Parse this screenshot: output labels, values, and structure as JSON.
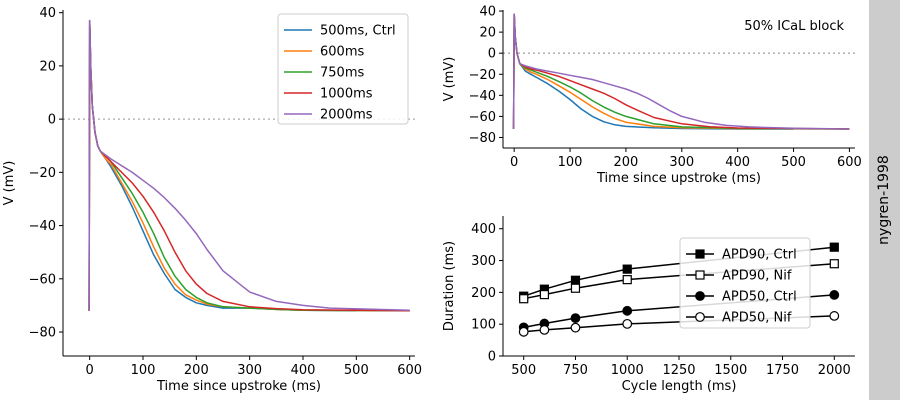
{
  "side_label": "nygren-1998",
  "colors": {
    "500ms, Ctrl": "#1f77b4",
    "600ms": "#ff7f0e",
    "750ms": "#2ca02c",
    "1000ms": "#d62728",
    "2000ms": "#9467bd",
    "marker": "#000000",
    "zero_line": "#aaaaaa",
    "side_band": "#cccccc"
  },
  "chart_data": [
    {
      "type": "line",
      "xlabel": "Time since upstroke (ms)",
      "ylabel": "V (mV)",
      "xlim": [
        -50,
        610
      ],
      "ylim": [
        -89,
        41
      ],
      "xticks": [
        0,
        100,
        200,
        300,
        400,
        500,
        600
      ],
      "yticks": [
        -80,
        -60,
        -40,
        -20,
        0,
        20,
        40
      ],
      "zero_line": true,
      "legend": "top-right",
      "series": [
        {
          "name": "500ms, Ctrl",
          "x": [
            -1,
            0,
            2,
            5,
            10,
            15,
            20,
            30,
            40,
            60,
            80,
            100,
            120,
            140,
            160,
            180,
            200,
            220,
            250,
            300,
            350,
            400,
            500
          ],
          "y": [
            -72,
            37,
            20,
            5,
            -5,
            -10,
            -12,
            -15,
            -18,
            -25,
            -33,
            -42,
            -51,
            -58,
            -64,
            -67,
            -69,
            -70,
            -71,
            -71,
            -71.5,
            -71.8,
            -72
          ]
        },
        {
          "name": "600ms",
          "x": [
            -1,
            0,
            2,
            5,
            10,
            15,
            20,
            30,
            40,
            60,
            80,
            100,
            120,
            140,
            160,
            180,
            200,
            220,
            250,
            300,
            350,
            400,
            600
          ],
          "y": [
            -72,
            37,
            20,
            5,
            -5,
            -10,
            -12,
            -15,
            -17,
            -24,
            -31,
            -39,
            -48,
            -56,
            -62,
            -66,
            -68,
            -69.5,
            -70.5,
            -71,
            -71.5,
            -71.8,
            -72
          ]
        },
        {
          "name": "750ms",
          "x": [
            -1,
            0,
            2,
            5,
            10,
            15,
            20,
            30,
            40,
            60,
            80,
            100,
            120,
            140,
            160,
            180,
            200,
            220,
            250,
            300,
            350,
            400,
            600
          ],
          "y": [
            -72,
            37,
            20,
            5,
            -5,
            -10,
            -12,
            -14,
            -16,
            -22,
            -28,
            -35,
            -43,
            -52,
            -59,
            -64,
            -67,
            -69,
            -70.5,
            -71,
            -71.5,
            -71.8,
            -72
          ]
        },
        {
          "name": "1000ms",
          "x": [
            -1,
            0,
            2,
            5,
            10,
            15,
            20,
            30,
            40,
            60,
            80,
            100,
            120,
            140,
            160,
            180,
            200,
            220,
            250,
            300,
            350,
            400,
            600
          ],
          "y": [
            -72,
            37,
            20,
            5,
            -5,
            -10,
            -12,
            -14,
            -16,
            -20,
            -24,
            -29,
            -35,
            -42,
            -50,
            -57,
            -62,
            -65.5,
            -68.5,
            -70.5,
            -71.2,
            -71.6,
            -72
          ]
        },
        {
          "name": "2000ms",
          "x": [
            -1,
            0,
            2,
            5,
            10,
            15,
            20,
            30,
            40,
            60,
            80,
            100,
            120,
            140,
            160,
            180,
            200,
            220,
            250,
            300,
            350,
            400,
            450,
            600
          ],
          "y": [
            -72,
            37,
            20,
            5,
            -5,
            -10,
            -12,
            -13.5,
            -15,
            -17.5,
            -20,
            -23,
            -26,
            -29.5,
            -33.5,
            -38,
            -43,
            -49,
            -57,
            -65,
            -68.5,
            -70,
            -71,
            -71.8
          ]
        }
      ]
    },
    {
      "type": "line",
      "xlabel": "Time since upstroke (ms)",
      "ylabel": "V (mV)",
      "annotation": "50% ICaL block",
      "xlim": [
        -20,
        610
      ],
      "ylim": [
        -90,
        41
      ],
      "xticks": [
        0,
        100,
        200,
        300,
        400,
        500,
        600
      ],
      "yticks": [
        -80,
        -60,
        -40,
        -20,
        0,
        20,
        40
      ],
      "zero_line": true,
      "series": [
        {
          "name": "500ms, Ctrl",
          "x": [
            -1,
            0,
            2,
            5,
            10,
            20,
            30,
            40,
            60,
            80,
            100,
            120,
            140,
            160,
            180,
            200,
            250,
            300,
            400,
            500
          ],
          "y": [
            -72,
            37,
            15,
            0,
            -10,
            -17,
            -20,
            -23,
            -29,
            -36,
            -44,
            -53,
            -60,
            -65,
            -68,
            -69.5,
            -70.8,
            -71.5,
            -72,
            -72
          ]
        },
        {
          "name": "600ms",
          "x": [
            -1,
            0,
            2,
            5,
            10,
            20,
            30,
            40,
            60,
            80,
            100,
            120,
            140,
            160,
            180,
            200,
            250,
            300,
            400,
            600
          ],
          "y": [
            -72,
            37,
            15,
            0,
            -10,
            -15,
            -18,
            -20,
            -25,
            -31,
            -37,
            -44,
            -51,
            -57,
            -62,
            -65.5,
            -69.5,
            -70.8,
            -71.6,
            -72
          ]
        },
        {
          "name": "750ms",
          "x": [
            -1,
            0,
            2,
            5,
            10,
            20,
            30,
            40,
            60,
            80,
            100,
            120,
            140,
            160,
            180,
            200,
            250,
            300,
            400,
            600
          ],
          "y": [
            -72,
            37,
            15,
            0,
            -10,
            -14,
            -16,
            -18,
            -22,
            -27,
            -32,
            -38,
            -45,
            -51,
            -56,
            -60,
            -67,
            -70,
            -71.5,
            -72
          ]
        },
        {
          "name": "1000ms",
          "x": [
            -1,
            0,
            2,
            5,
            10,
            20,
            30,
            40,
            60,
            80,
            100,
            120,
            140,
            160,
            180,
            200,
            220,
            250,
            300,
            350,
            400,
            600
          ],
          "y": [
            -72,
            37,
            15,
            0,
            -10,
            -13,
            -15,
            -16,
            -19,
            -22,
            -26,
            -30,
            -34,
            -38,
            -43,
            -49,
            -54,
            -61,
            -67,
            -69.8,
            -71,
            -72
          ]
        },
        {
          "name": "2000ms",
          "x": [
            -1,
            0,
            2,
            5,
            10,
            20,
            30,
            40,
            60,
            80,
            100,
            120,
            140,
            160,
            180,
            200,
            220,
            240,
            260,
            280,
            300,
            340,
            380,
            420,
            500,
            600
          ],
          "y": [
            -72,
            37,
            15,
            0,
            -10,
            -12,
            -13.5,
            -15,
            -17,
            -19,
            -21,
            -23,
            -25,
            -28,
            -31,
            -34,
            -38,
            -43,
            -49,
            -55,
            -60,
            -65.5,
            -68.5,
            -70,
            -71.3,
            -72
          ]
        }
      ]
    },
    {
      "type": "line",
      "xlabel": "Cycle length (ms)",
      "ylabel": "Duration (ms)",
      "xlim": [
        400,
        2100
      ],
      "ylim": [
        0,
        440
      ],
      "xticks": [
        500,
        750,
        1000,
        1250,
        1500,
        1750,
        2000
      ],
      "yticks": [
        0,
        100,
        200,
        300,
        400
      ],
      "legend": "center-right",
      "x": [
        500,
        600,
        750,
        1000,
        2000
      ],
      "series": [
        {
          "name": "APD90, Ctrl",
          "marker": "square",
          "filled": true,
          "values": [
            188,
            210,
            238,
            273,
            342
          ]
        },
        {
          "name": "APD90, Nif",
          "marker": "square",
          "filled": false,
          "values": [
            180,
            193,
            213,
            240,
            290
          ]
        },
        {
          "name": "APD50, Ctrl",
          "marker": "circle",
          "filled": true,
          "values": [
            90,
            102,
            119,
            142,
            192
          ]
        },
        {
          "name": "APD50, Nif",
          "marker": "circle",
          "filled": false,
          "values": [
            76,
            82,
            89,
            101,
            126
          ]
        }
      ]
    }
  ]
}
